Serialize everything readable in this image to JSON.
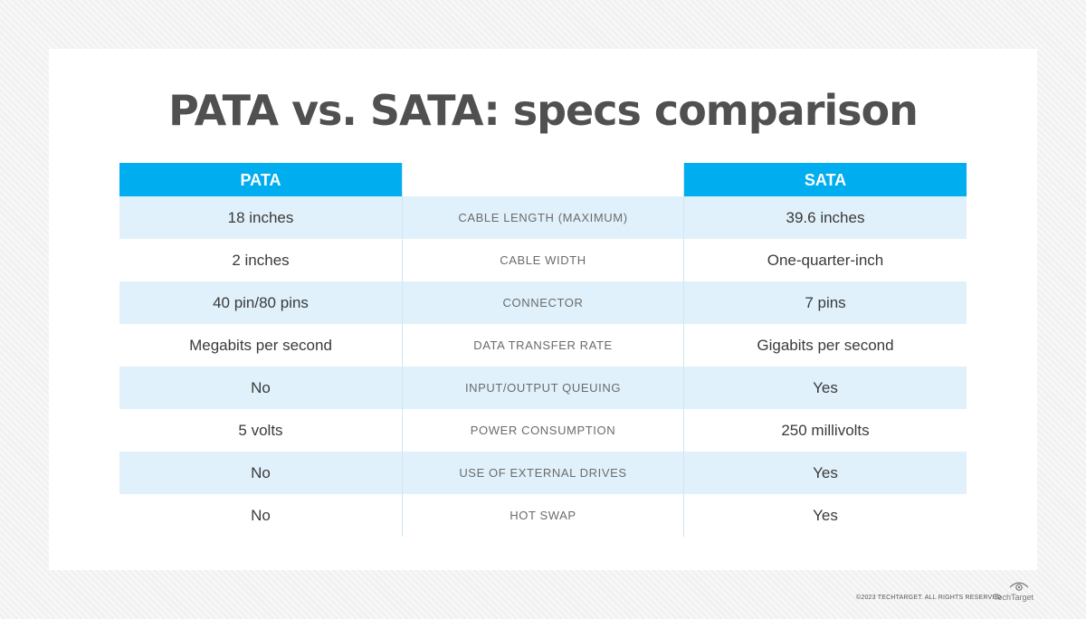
{
  "title": "PATA vs. SATA: specs comparison",
  "table": {
    "headers": {
      "left": "PATA",
      "middle": "",
      "right": "SATA"
    },
    "rows": [
      {
        "pata": "18 inches",
        "spec": "CABLE LENGTH (MAXIMUM)",
        "sata": "39.6 inches"
      },
      {
        "pata": "2 inches",
        "spec": "CABLE WIDTH",
        "sata": "One-quarter-inch"
      },
      {
        "pata": "40 pin/80 pins",
        "spec": "CONNECTOR",
        "sata": "7 pins"
      },
      {
        "pata": "Megabits per second",
        "spec": "DATA TRANSFER RATE",
        "sata": "Gigabits per second"
      },
      {
        "pata": "No",
        "spec": "INPUT/OUTPUT QUEUING",
        "sata": "Yes"
      },
      {
        "pata": "5 volts",
        "spec": "POWER CONSUMPTION",
        "sata": "250 millivolts"
      },
      {
        "pata": "No",
        "spec": "USE OF EXTERNAL DRIVES",
        "sata": "Yes"
      },
      {
        "pata": "No",
        "spec": "HOT SWAP",
        "sata": "Yes"
      }
    ]
  },
  "footer": {
    "copyright": "©2023 TECHTARGET. ALL RIGHTS RESERVED",
    "logo_text": "TechTarget",
    "logo_icon": "eye-icon"
  },
  "colors": {
    "header_blue": "#00aeef",
    "row_shade": "#e0f1fb",
    "title_gray": "#505050"
  }
}
